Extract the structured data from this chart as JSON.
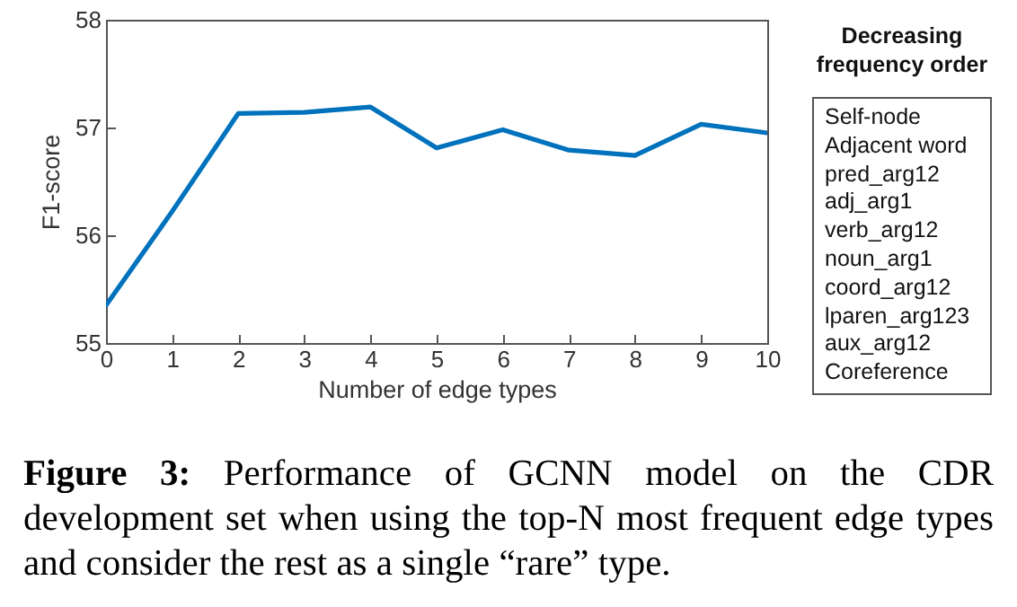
{
  "chart_data": [
    {
      "type": "line",
      "xlabel": "Number of edge types",
      "ylabel": "F1-score",
      "x": [
        0,
        1,
        2,
        3,
        4,
        5,
        6,
        7,
        8,
        9,
        10
      ],
      "series": [
        {
          "color": "#0072bd",
          "values": [
            55.35,
            56.22,
            57.13,
            57.14,
            57.19,
            56.81,
            56.98,
            56.79,
            56.74,
            57.03,
            56.95
          ]
        }
      ],
      "xlim": [
        0,
        10
      ],
      "xticks": [
        0,
        1,
        2,
        3,
        4,
        5,
        6,
        7,
        8,
        9,
        10
      ],
      "ylim": [
        55,
        58
      ],
      "yticks": [
        55,
        56,
        57,
        58
      ],
      "grid": false,
      "annotations": [
        "Figure 3: Performance of GCNN model on the CDR development set when using the top-N most frequent edge types and consider the rest as a single “rare” type."
      ]
    },
    {
      "type": "other",
      "title": "Decreasing frequency order",
      "annotations": [
        "Self-node",
        "Adjacent word",
        "pred_arg12",
        "adj_arg1",
        "verb_arg12",
        "noun_arg1",
        "coord_arg12",
        "lparen_arg123",
        "aux_arg12",
        "Coreference"
      ]
    }
  ]
}
